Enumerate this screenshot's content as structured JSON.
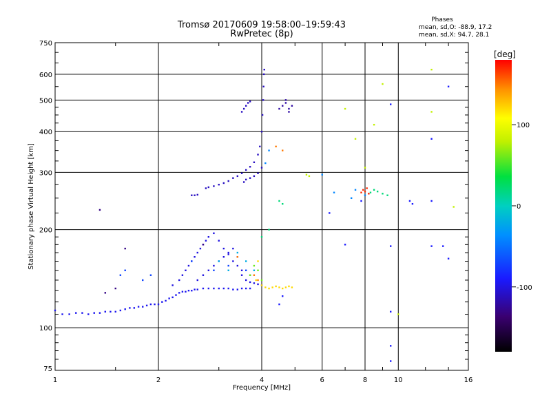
{
  "chart_data": {
    "type": "scatter",
    "title": "Tromsø 20170609 19:58:00–19:59:43",
    "subtitle": "RwPretec (8p)",
    "stats": {
      "heading": "Phases",
      "line_o": "mean, sd,O: -88.9, 17.2",
      "line_x": "mean, sd,X: 94.7, 28.1"
    },
    "xlabel": "Frequency [MHz]",
    "ylabel": "Stationary phase Virtual Height [km]",
    "x_scale": "log",
    "y_scale": "log",
    "xlim": [
      1,
      16
    ],
    "ylim": [
      74,
      750
    ],
    "x_ticks": [
      1,
      2,
      4,
      6,
      8,
      10,
      16
    ],
    "y_ticks": [
      75,
      100,
      200,
      300,
      400,
      500,
      600,
      750
    ],
    "grid": true,
    "colorbar": {
      "label": "[deg]",
      "range": [
        -180,
        180
      ],
      "ticks": [
        100,
        0,
        -100
      ]
    },
    "series": [
      {
        "phase": -95,
        "points": [
          [
            1.0,
            113
          ],
          [
            1.05,
            110
          ],
          [
            1.1,
            110
          ],
          [
            1.15,
            111
          ],
          [
            1.2,
            111
          ],
          [
            1.25,
            110
          ],
          [
            1.3,
            111
          ],
          [
            1.35,
            111
          ],
          [
            1.4,
            112
          ],
          [
            1.45,
            112
          ],
          [
            1.5,
            112
          ],
          [
            1.55,
            113
          ],
          [
            1.6,
            114
          ],
          [
            1.65,
            115
          ],
          [
            1.7,
            115
          ],
          [
            1.75,
            116
          ],
          [
            1.8,
            116
          ],
          [
            1.85,
            117
          ],
          [
            1.9,
            118
          ],
          [
            1.95,
            118
          ],
          [
            2.0,
            118
          ],
          [
            2.05,
            120
          ],
          [
            2.1,
            121
          ],
          [
            2.15,
            123
          ],
          [
            2.2,
            124
          ],
          [
            2.25,
            126
          ],
          [
            2.3,
            128
          ],
          [
            2.35,
            129
          ],
          [
            2.4,
            129
          ],
          [
            2.45,
            130
          ],
          [
            2.5,
            130
          ],
          [
            2.55,
            131
          ],
          [
            2.6,
            131
          ],
          [
            2.7,
            132
          ],
          [
            2.8,
            132
          ],
          [
            2.9,
            132
          ],
          [
            3.0,
            132
          ],
          [
            3.1,
            132
          ],
          [
            3.2,
            132
          ],
          [
            3.3,
            131
          ],
          [
            3.4,
            131
          ],
          [
            3.5,
            132
          ],
          [
            3.6,
            132
          ],
          [
            3.7,
            132
          ]
        ]
      },
      {
        "phase": -100,
        "points": [
          [
            2.2,
            135
          ],
          [
            2.3,
            140
          ],
          [
            2.35,
            145
          ],
          [
            2.4,
            150
          ],
          [
            2.45,
            155
          ],
          [
            2.5,
            160
          ],
          [
            2.55,
            165
          ],
          [
            2.6,
            170
          ],
          [
            2.65,
            175
          ],
          [
            2.7,
            180
          ],
          [
            2.75,
            185
          ],
          [
            2.8,
            190
          ],
          [
            2.9,
            195
          ],
          [
            3.0,
            185
          ],
          [
            3.1,
            175
          ],
          [
            3.2,
            168
          ],
          [
            3.3,
            160
          ],
          [
            3.4,
            155
          ],
          [
            3.5,
            150
          ],
          [
            2.6,
            140
          ],
          [
            2.7,
            145
          ],
          [
            2.8,
            150
          ],
          [
            2.9,
            155
          ],
          [
            3.0,
            160
          ],
          [
            3.1,
            165
          ],
          [
            3.2,
            170
          ],
          [
            3.3,
            175
          ],
          [
            3.4,
            165
          ],
          [
            3.5,
            145
          ],
          [
            3.6,
            140
          ],
          [
            3.7,
            138
          ],
          [
            3.8,
            137
          ],
          [
            3.9,
            136
          ],
          [
            4.0,
            135
          ]
        ]
      },
      {
        "phase": -110,
        "points": [
          [
            2.5,
            255
          ],
          [
            2.55,
            255
          ],
          [
            2.6,
            256
          ],
          [
            2.75,
            268
          ],
          [
            2.8,
            270
          ],
          [
            2.9,
            272
          ],
          [
            3.0,
            275
          ],
          [
            3.1,
            278
          ],
          [
            3.2,
            282
          ],
          [
            3.3,
            288
          ],
          [
            3.4,
            292
          ],
          [
            3.5,
            298
          ],
          [
            3.6,
            305
          ],
          [
            3.7,
            312
          ],
          [
            3.8,
            322
          ],
          [
            3.9,
            340
          ],
          [
            3.95,
            360
          ],
          [
            4.0,
            400
          ],
          [
            4.02,
            450
          ],
          [
            4.04,
            500
          ],
          [
            4.05,
            550
          ],
          [
            4.06,
            600
          ],
          [
            4.07,
            620
          ],
          [
            3.5,
            460
          ],
          [
            3.55,
            470
          ],
          [
            3.6,
            480
          ],
          [
            3.65,
            490
          ],
          [
            3.7,
            495
          ],
          [
            3.55,
            280
          ],
          [
            3.6,
            285
          ],
          [
            3.7,
            288
          ],
          [
            3.8,
            292
          ],
          [
            3.9,
            298
          ],
          [
            4.0,
            310
          ]
        ]
      },
      {
        "phase": -120,
        "points": [
          [
            4.5,
            470
          ],
          [
            4.6,
            480
          ],
          [
            4.7,
            490
          ],
          [
            4.8,
            470
          ],
          [
            4.9,
            480
          ],
          [
            4.7,
            500
          ],
          [
            4.8,
            460
          ]
        ]
      },
      {
        "phase": -70,
        "points": [
          [
            1.8,
            140
          ],
          [
            1.9,
            145
          ],
          [
            2.5,
            160
          ],
          [
            2.9,
            150
          ],
          [
            3.2,
            155
          ],
          [
            3.6,
            150
          ],
          [
            3.7,
            145
          ],
          [
            1.55,
            145
          ],
          [
            1.6,
            150
          ]
        ]
      },
      {
        "phase": -20,
        "points": [
          [
            3.0,
            160
          ],
          [
            3.2,
            150
          ],
          [
            3.4,
            170
          ],
          [
            3.6,
            160
          ],
          [
            3.8,
            150
          ]
        ]
      },
      {
        "phase": 60,
        "points": [
          [
            3.8,
            155
          ],
          [
            3.9,
            150
          ],
          [
            4.0,
            140
          ],
          [
            3.7,
            145
          ]
        ]
      },
      {
        "phase": 120,
        "points": [
          [
            4.0,
            135
          ],
          [
            4.1,
            133
          ],
          [
            4.2,
            132
          ],
          [
            4.3,
            133
          ],
          [
            4.4,
            134
          ],
          [
            4.5,
            133
          ],
          [
            4.6,
            132
          ],
          [
            4.7,
            133
          ],
          [
            4.8,
            134
          ],
          [
            4.9,
            133
          ],
          [
            3.9,
            160
          ],
          [
            3.85,
            140
          ]
        ]
      },
      {
        "phase": 150,
        "points": [
          [
            3.8,
            145
          ],
          [
            3.9,
            140
          ],
          [
            4.4,
            360
          ],
          [
            4.6,
            350
          ],
          [
            3.4,
            165
          ]
        ]
      },
      {
        "phase": 80,
        "points": [
          [
            5.4,
            295
          ],
          [
            5.5,
            292
          ],
          [
            7.0,
            470
          ],
          [
            7.5,
            380
          ],
          [
            8.0,
            310
          ],
          [
            8.5,
            420
          ],
          [
            9.0,
            560
          ],
          [
            10.0,
            110
          ],
          [
            12.5,
            620
          ],
          [
            12.5,
            460
          ],
          [
            14.5,
            235
          ]
        ]
      },
      {
        "phase": 20,
        "points": [
          [
            4.6,
            240
          ],
          [
            4.5,
            245
          ],
          [
            8.3,
            260
          ],
          [
            8.5,
            265
          ],
          [
            8.7,
            262
          ],
          [
            9.0,
            258
          ],
          [
            9.3,
            255
          ],
          [
            4.0,
            190
          ],
          [
            4.2,
            200
          ]
        ]
      },
      {
        "phase": -40,
        "points": [
          [
            6.0,
            295
          ],
          [
            6.5,
            260
          ],
          [
            7.3,
            250
          ],
          [
            8.0,
            255
          ],
          [
            7.5,
            265
          ],
          [
            4.2,
            350
          ],
          [
            4.1,
            320
          ]
        ]
      },
      {
        "phase": 170,
        "points": [
          [
            7.8,
            260
          ],
          [
            8.0,
            262
          ],
          [
            8.2,
            258
          ],
          [
            7.9,
            265
          ],
          [
            8.1,
            268
          ]
        ]
      },
      {
        "phase": -90,
        "points": [
          [
            6.3,
            225
          ],
          [
            7.0,
            180
          ],
          [
            7.8,
            245
          ],
          [
            10.8,
            245
          ],
          [
            11.0,
            240
          ],
          [
            12.5,
            245
          ],
          [
            12.5,
            380
          ],
          [
            12.5,
            178
          ],
          [
            13.5,
            178
          ],
          [
            14.0,
            163
          ],
          [
            9.5,
            178
          ],
          [
            9.5,
            112
          ],
          [
            9.5,
            485
          ],
          [
            9.5,
            79
          ],
          [
            9.5,
            88
          ],
          [
            14.0,
            550
          ],
          [
            4.5,
            118
          ],
          [
            4.6,
            125
          ]
        ]
      },
      {
        "phase": -130,
        "points": [
          [
            1.35,
            230
          ],
          [
            1.6,
            175
          ],
          [
            1.4,
            128
          ],
          [
            1.5,
            132
          ],
          [
            2.7,
            180
          ]
        ]
      }
    ]
  }
}
